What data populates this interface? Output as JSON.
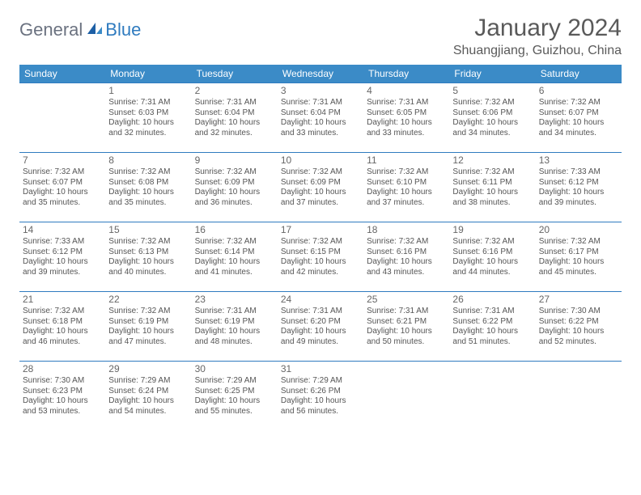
{
  "brand": {
    "general": "General",
    "blue": "Blue"
  },
  "title": "January 2024",
  "location": "Shuangjiang, Guizhou, China",
  "colors": {
    "header_bg": "#3b8bc7",
    "header_text": "#ffffff",
    "rule": "#2f7bbf",
    "body_text": "#555555",
    "title_text": "#5a5a5a",
    "logo_gray": "#6b7280",
    "logo_blue": "#2f7bbf",
    "background": "#ffffff"
  },
  "fonts": {
    "title_pt": 30,
    "location_pt": 16,
    "header_pt": 12,
    "cell_pt": 10,
    "daynum_pt": 12
  },
  "day_headers": [
    "Sunday",
    "Monday",
    "Tuesday",
    "Wednesday",
    "Thursday",
    "Friday",
    "Saturday"
  ],
  "weeks": [
    [
      null,
      {
        "d": "1",
        "sr": "Sunrise: 7:31 AM",
        "ss": "Sunset: 6:03 PM",
        "dl1": "Daylight: 10 hours",
        "dl2": "and 32 minutes."
      },
      {
        "d": "2",
        "sr": "Sunrise: 7:31 AM",
        "ss": "Sunset: 6:04 PM",
        "dl1": "Daylight: 10 hours",
        "dl2": "and 32 minutes."
      },
      {
        "d": "3",
        "sr": "Sunrise: 7:31 AM",
        "ss": "Sunset: 6:04 PM",
        "dl1": "Daylight: 10 hours",
        "dl2": "and 33 minutes."
      },
      {
        "d": "4",
        "sr": "Sunrise: 7:31 AM",
        "ss": "Sunset: 6:05 PM",
        "dl1": "Daylight: 10 hours",
        "dl2": "and 33 minutes."
      },
      {
        "d": "5",
        "sr": "Sunrise: 7:32 AM",
        "ss": "Sunset: 6:06 PM",
        "dl1": "Daylight: 10 hours",
        "dl2": "and 34 minutes."
      },
      {
        "d": "6",
        "sr": "Sunrise: 7:32 AM",
        "ss": "Sunset: 6:07 PM",
        "dl1": "Daylight: 10 hours",
        "dl2": "and 34 minutes."
      }
    ],
    [
      {
        "d": "7",
        "sr": "Sunrise: 7:32 AM",
        "ss": "Sunset: 6:07 PM",
        "dl1": "Daylight: 10 hours",
        "dl2": "and 35 minutes."
      },
      {
        "d": "8",
        "sr": "Sunrise: 7:32 AM",
        "ss": "Sunset: 6:08 PM",
        "dl1": "Daylight: 10 hours",
        "dl2": "and 35 minutes."
      },
      {
        "d": "9",
        "sr": "Sunrise: 7:32 AM",
        "ss": "Sunset: 6:09 PM",
        "dl1": "Daylight: 10 hours",
        "dl2": "and 36 minutes."
      },
      {
        "d": "10",
        "sr": "Sunrise: 7:32 AM",
        "ss": "Sunset: 6:09 PM",
        "dl1": "Daylight: 10 hours",
        "dl2": "and 37 minutes."
      },
      {
        "d": "11",
        "sr": "Sunrise: 7:32 AM",
        "ss": "Sunset: 6:10 PM",
        "dl1": "Daylight: 10 hours",
        "dl2": "and 37 minutes."
      },
      {
        "d": "12",
        "sr": "Sunrise: 7:32 AM",
        "ss": "Sunset: 6:11 PM",
        "dl1": "Daylight: 10 hours",
        "dl2": "and 38 minutes."
      },
      {
        "d": "13",
        "sr": "Sunrise: 7:33 AM",
        "ss": "Sunset: 6:12 PM",
        "dl1": "Daylight: 10 hours",
        "dl2": "and 39 minutes."
      }
    ],
    [
      {
        "d": "14",
        "sr": "Sunrise: 7:33 AM",
        "ss": "Sunset: 6:12 PM",
        "dl1": "Daylight: 10 hours",
        "dl2": "and 39 minutes."
      },
      {
        "d": "15",
        "sr": "Sunrise: 7:32 AM",
        "ss": "Sunset: 6:13 PM",
        "dl1": "Daylight: 10 hours",
        "dl2": "and 40 minutes."
      },
      {
        "d": "16",
        "sr": "Sunrise: 7:32 AM",
        "ss": "Sunset: 6:14 PM",
        "dl1": "Daylight: 10 hours",
        "dl2": "and 41 minutes."
      },
      {
        "d": "17",
        "sr": "Sunrise: 7:32 AM",
        "ss": "Sunset: 6:15 PM",
        "dl1": "Daylight: 10 hours",
        "dl2": "and 42 minutes."
      },
      {
        "d": "18",
        "sr": "Sunrise: 7:32 AM",
        "ss": "Sunset: 6:16 PM",
        "dl1": "Daylight: 10 hours",
        "dl2": "and 43 minutes."
      },
      {
        "d": "19",
        "sr": "Sunrise: 7:32 AM",
        "ss": "Sunset: 6:16 PM",
        "dl1": "Daylight: 10 hours",
        "dl2": "and 44 minutes."
      },
      {
        "d": "20",
        "sr": "Sunrise: 7:32 AM",
        "ss": "Sunset: 6:17 PM",
        "dl1": "Daylight: 10 hours",
        "dl2": "and 45 minutes."
      }
    ],
    [
      {
        "d": "21",
        "sr": "Sunrise: 7:32 AM",
        "ss": "Sunset: 6:18 PM",
        "dl1": "Daylight: 10 hours",
        "dl2": "and 46 minutes."
      },
      {
        "d": "22",
        "sr": "Sunrise: 7:32 AM",
        "ss": "Sunset: 6:19 PM",
        "dl1": "Daylight: 10 hours",
        "dl2": "and 47 minutes."
      },
      {
        "d": "23",
        "sr": "Sunrise: 7:31 AM",
        "ss": "Sunset: 6:19 PM",
        "dl1": "Daylight: 10 hours",
        "dl2": "and 48 minutes."
      },
      {
        "d": "24",
        "sr": "Sunrise: 7:31 AM",
        "ss": "Sunset: 6:20 PM",
        "dl1": "Daylight: 10 hours",
        "dl2": "and 49 minutes."
      },
      {
        "d": "25",
        "sr": "Sunrise: 7:31 AM",
        "ss": "Sunset: 6:21 PM",
        "dl1": "Daylight: 10 hours",
        "dl2": "and 50 minutes."
      },
      {
        "d": "26",
        "sr": "Sunrise: 7:31 AM",
        "ss": "Sunset: 6:22 PM",
        "dl1": "Daylight: 10 hours",
        "dl2": "and 51 minutes."
      },
      {
        "d": "27",
        "sr": "Sunrise: 7:30 AM",
        "ss": "Sunset: 6:22 PM",
        "dl1": "Daylight: 10 hours",
        "dl2": "and 52 minutes."
      }
    ],
    [
      {
        "d": "28",
        "sr": "Sunrise: 7:30 AM",
        "ss": "Sunset: 6:23 PM",
        "dl1": "Daylight: 10 hours",
        "dl2": "and 53 minutes."
      },
      {
        "d": "29",
        "sr": "Sunrise: 7:29 AM",
        "ss": "Sunset: 6:24 PM",
        "dl1": "Daylight: 10 hours",
        "dl2": "and 54 minutes."
      },
      {
        "d": "30",
        "sr": "Sunrise: 7:29 AM",
        "ss": "Sunset: 6:25 PM",
        "dl1": "Daylight: 10 hours",
        "dl2": "and 55 minutes."
      },
      {
        "d": "31",
        "sr": "Sunrise: 7:29 AM",
        "ss": "Sunset: 6:26 PM",
        "dl1": "Daylight: 10 hours",
        "dl2": "and 56 minutes."
      },
      null,
      null,
      null
    ]
  ]
}
